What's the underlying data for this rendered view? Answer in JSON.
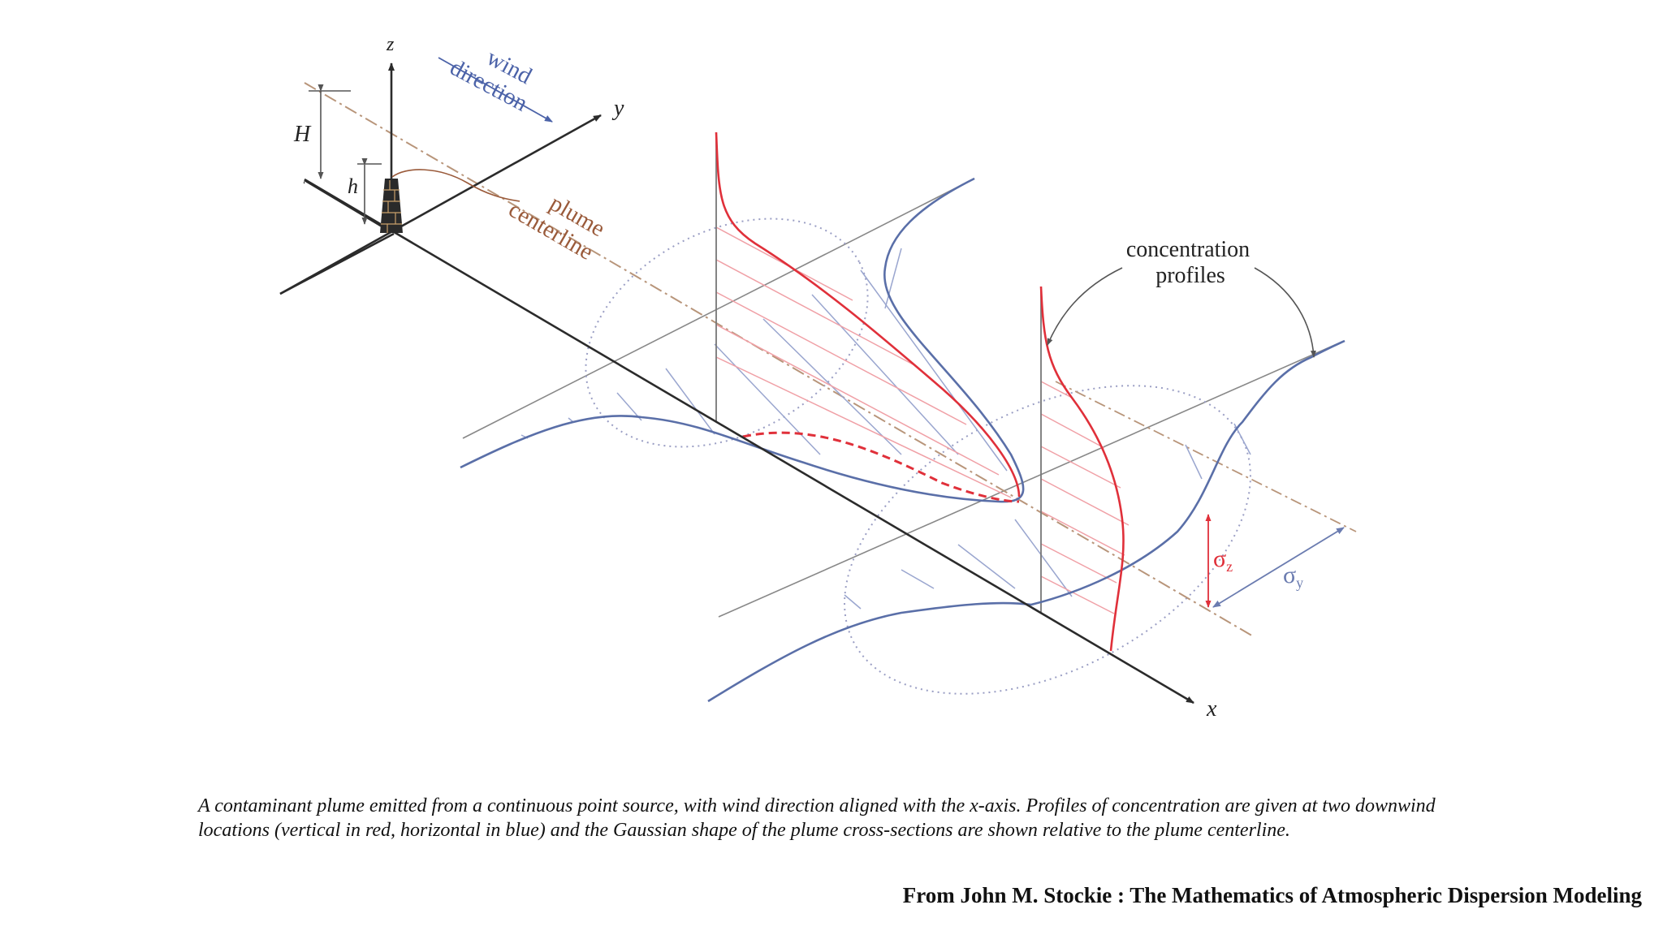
{
  "labels": {
    "z_axis": "z",
    "y_axis": "y",
    "x_axis": "x",
    "stack_height": "h",
    "effective_height": "H",
    "wind_line1": "wind",
    "wind_line2": "direction",
    "plume_line1": "plume",
    "plume_line2": "centerline",
    "conc_line1": "concentration",
    "conc_line2": "profiles",
    "sigma_z": "σ",
    "sigma_z_sub": "z",
    "sigma_y": "σ",
    "sigma_y_sub": "y"
  },
  "colors": {
    "axis": "#2b2b2b",
    "red_profile": "#e0303a",
    "blue_profile": "#5a6fa8",
    "wind_text": "#4b62a8",
    "plume_text": "#9a5a3a",
    "ellipse": "#8a8fb8"
  },
  "caption": "A contaminant plume emitted from a continuous point source, with wind direction aligned with the x-axis. Profiles of concentration are given at two downwind locations (vertical in red, horizontal in blue) and the Gaussian shape of the plume cross-sections are shown relative to the plume centerline.",
  "source": "From John M. Stockie : The Mathematics of Atmospheric Dispersion Modeling"
}
